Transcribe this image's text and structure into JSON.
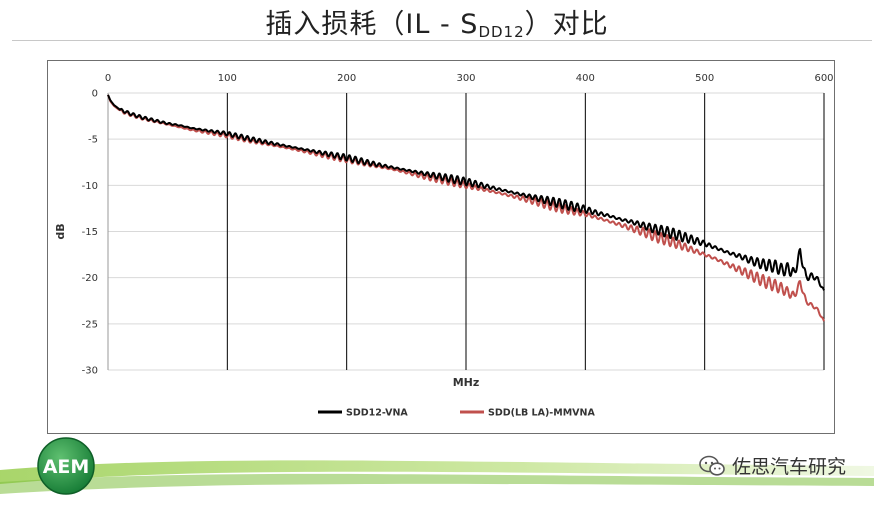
{
  "slide": {
    "title_main": "插入损耗（IL - S",
    "title_sub": "DD12",
    "title_end": "）对比"
  },
  "footer": {
    "logo_text": "AEM",
    "watermark": "佐思汽车研究",
    "logo_color": "#1f8a3a",
    "band_color": "#7fbf3f"
  },
  "chart_data": {
    "type": "line",
    "xlabel": "MHz",
    "ylabel": "dB",
    "xlim": [
      0,
      600
    ],
    "ylim": [
      -30,
      0
    ],
    "x_ticks": [
      0,
      100,
      200,
      300,
      400,
      500,
      600
    ],
    "y_ticks": [
      0,
      -5,
      -10,
      -15,
      -20,
      -25,
      -30
    ],
    "x_tick_labels": [
      "0",
      "100",
      "200",
      "300",
      "400",
      "500",
      "600"
    ],
    "y_tick_labels": [
      "0",
      "-5",
      "-10",
      "-15",
      "-20",
      "-25",
      "-30"
    ],
    "vertical_grid": true,
    "horizontal_grid": true,
    "legend_position": "bottom",
    "series": [
      {
        "name": "SDD12-VNA",
        "color": "#000000",
        "x": [
          0,
          2,
          5,
          10,
          20,
          30,
          40,
          50,
          60,
          70,
          80,
          90,
          100,
          120,
          140,
          160,
          180,
          200,
          220,
          240,
          260,
          280,
          300,
          320,
          340,
          360,
          380,
          400,
          410,
          420,
          430,
          440,
          450,
          460,
          470,
          480,
          490,
          500,
          510,
          520,
          530,
          540,
          550,
          560,
          565,
          570,
          575,
          580,
          585,
          590,
          595,
          600
        ],
        "y": [
          -0.2,
          -0.8,
          -1.3,
          -1.8,
          -2.3,
          -2.7,
          -3.0,
          -3.3,
          -3.5,
          -3.8,
          -4.0,
          -4.2,
          -4.4,
          -5.0,
          -5.5,
          -6.0,
          -6.5,
          -7.0,
          -7.6,
          -8.1,
          -8.6,
          -9.1,
          -9.6,
          -10.2,
          -10.8,
          -11.4,
          -12.0,
          -12.6,
          -13.0,
          -13.3,
          -13.7,
          -14.0,
          -14.4,
          -14.8,
          -15.1,
          -15.5,
          -15.9,
          -16.3,
          -16.8,
          -17.3,
          -17.7,
          -18.2,
          -18.6,
          -18.8,
          -19.2,
          -19.0,
          -19.6,
          -17.2,
          -20.0,
          -19.8,
          -20.2,
          -21.5
        ]
      },
      {
        "name": "SDD(LB LA)-MMVNA",
        "color": "#c0504d",
        "x": [
          0,
          2,
          5,
          10,
          20,
          30,
          40,
          50,
          60,
          70,
          80,
          90,
          100,
          120,
          140,
          160,
          180,
          200,
          220,
          240,
          260,
          280,
          300,
          320,
          340,
          360,
          380,
          400,
          410,
          420,
          430,
          440,
          450,
          460,
          470,
          480,
          490,
          500,
          510,
          520,
          530,
          540,
          550,
          560,
          565,
          570,
          575,
          580,
          585,
          590,
          595,
          600
        ],
        "y": [
          -0.2,
          -0.9,
          -1.4,
          -1.9,
          -2.4,
          -2.8,
          -3.1,
          -3.4,
          -3.7,
          -4.0,
          -4.2,
          -4.4,
          -4.6,
          -5.2,
          -5.7,
          -6.2,
          -6.7,
          -7.2,
          -7.8,
          -8.3,
          -8.9,
          -9.4,
          -10.0,
          -10.6,
          -11.2,
          -11.8,
          -12.5,
          -13.1,
          -13.5,
          -13.9,
          -14.3,
          -14.7,
          -15.1,
          -15.6,
          -16.0,
          -16.5,
          -17.0,
          -17.5,
          -18.0,
          -18.6,
          -19.2,
          -19.8,
          -20.4,
          -20.9,
          -21.2,
          -21.6,
          -22.0,
          -20.5,
          -22.6,
          -23.0,
          -23.5,
          -24.8
        ]
      }
    ]
  }
}
